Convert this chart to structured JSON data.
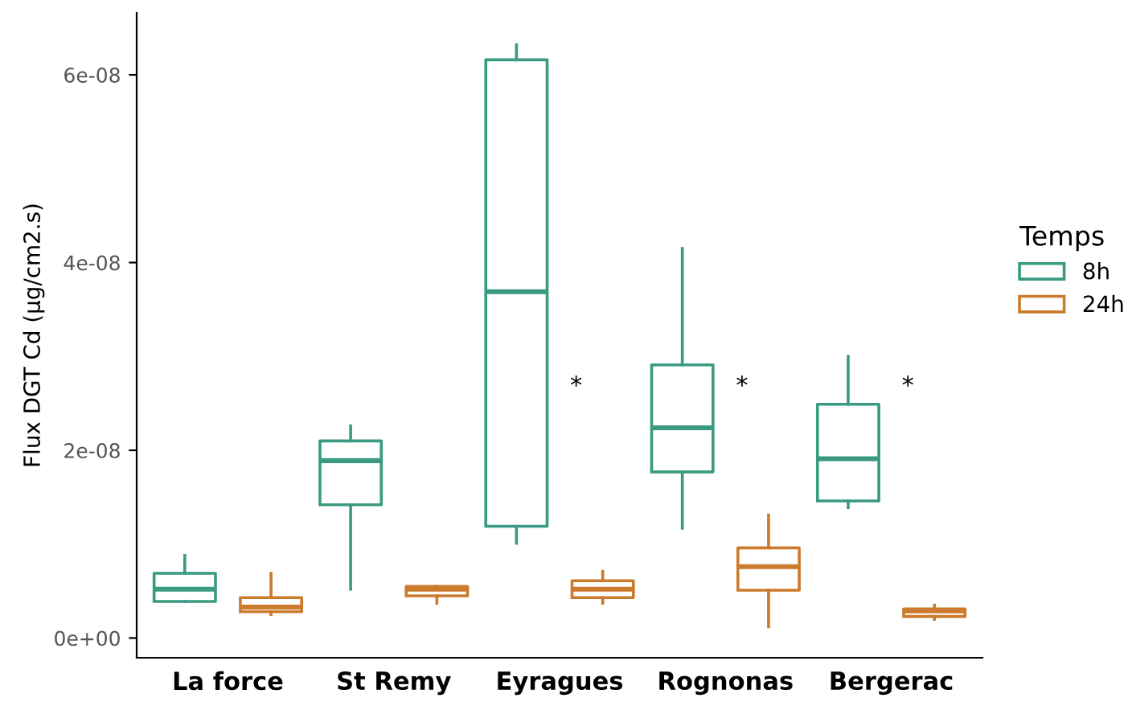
{
  "chart_data": {
    "type": "box",
    "ylabel": "Flux DGT Cd (µg/cm2.s)",
    "legend_title": "Temps",
    "legend": "right",
    "grid": false,
    "categories": [
      "La force",
      "St Remy",
      "Eyragues",
      "Rognonas",
      "Bergerac"
    ],
    "ylim": [
      -2.1e-09,
      6.66e-08
    ],
    "yticks": [
      {
        "value": 0,
        "label": "0e+00"
      },
      {
        "value": 2e-08,
        "label": "2e-08"
      },
      {
        "value": 4e-08,
        "label": "4e-08"
      },
      {
        "value": 6e-08,
        "label": "6e-08"
      }
    ],
    "series": [
      {
        "name": "8h",
        "color": "#3a9a82",
        "boxes": [
          {
            "low": 3.9e-09,
            "q1": 3.9e-09,
            "median": 5.2e-09,
            "q3": 6.9e-09,
            "high": 8.8e-09
          },
          {
            "low": 5.2e-09,
            "q1": 1.42e-08,
            "median": 1.89e-08,
            "q3": 2.1e-08,
            "high": 2.26e-08
          },
          {
            "low": 1.01e-08,
            "q1": 1.19e-08,
            "median": 3.69e-08,
            "q3": 6.16e-08,
            "high": 6.32e-08
          },
          {
            "low": 1.17e-08,
            "q1": 1.77e-08,
            "median": 2.24e-08,
            "q3": 2.91e-08,
            "high": 4.15e-08
          },
          {
            "low": 1.39e-08,
            "q1": 1.46e-08,
            "median": 1.91e-08,
            "q3": 2.49e-08,
            "high": 3e-08
          }
        ]
      },
      {
        "name": "24h",
        "color": "#cc7a2c",
        "boxes": [
          {
            "low": 2.5e-09,
            "q1": 2.8e-09,
            "median": 3.3e-09,
            "q3": 4.3e-09,
            "high": 6.9e-09
          },
          {
            "low": 3.7e-09,
            "q1": 4.5e-09,
            "median": 5.2e-09,
            "q3": 5.5e-09,
            "high": 5.5e-09
          },
          {
            "low": 3.7e-09,
            "q1": 4.3e-09,
            "median": 5.2e-09,
            "q3": 6.1e-09,
            "high": 7.1e-09
          },
          {
            "low": 1.2e-09,
            "q1": 5.1e-09,
            "median": 7.6e-09,
            "q3": 9.6e-09,
            "high": 1.31e-08
          },
          {
            "low": 2e-09,
            "q1": 2.3e-09,
            "median": 2.9e-09,
            "q3": 3.1e-09,
            "high": 3.5e-09
          }
        ]
      }
    ],
    "annotations": [
      "*",
      "*",
      "*"
    ]
  }
}
